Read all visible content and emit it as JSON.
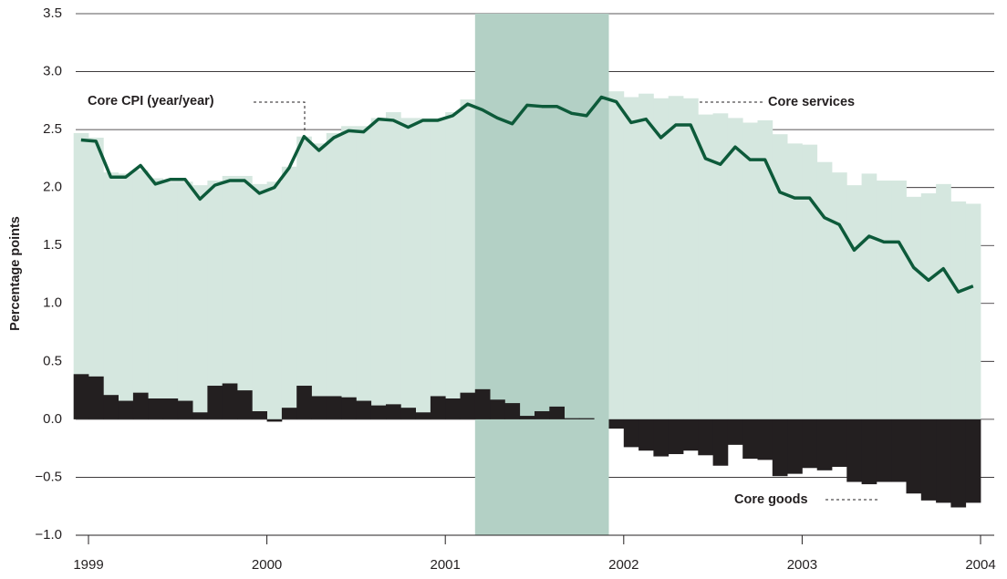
{
  "chart_data": {
    "type": "bar",
    "y_label": "Percentage points",
    "annotations": [
      "Core CPI (year/year)",
      "Core services",
      "Core goods"
    ],
    "categories": [
      "1999",
      null,
      null,
      null,
      null,
      null,
      null,
      null,
      null,
      null,
      null,
      null,
      "2000",
      null,
      null,
      null,
      null,
      null,
      null,
      null,
      null,
      null,
      null,
      null,
      "2001",
      null,
      null,
      null,
      null,
      null,
      null,
      null,
      null,
      null,
      null,
      null,
      "2002",
      null,
      null,
      null,
      null,
      null,
      null,
      null,
      null,
      null,
      null,
      null,
      "2003",
      null,
      null,
      null,
      null,
      null,
      null,
      null,
      null,
      null,
      null,
      null,
      "2004"
    ],
    "shaded_range": [
      27,
      35
    ],
    "shade_color": "#b3d0c5",
    "series": [
      {
        "name": "Core services",
        "type": "bar",
        "color": "#d5e7df",
        "values": [
          2.47,
          2.43,
          2.13,
          2.12,
          2.15,
          2.08,
          2.05,
          2.05,
          2.02,
          2.06,
          2.1,
          2.1,
          2.03,
          2.05,
          2.18,
          2.44,
          2.38,
          2.47,
          2.53,
          2.53,
          2.6,
          2.65,
          2.6,
          2.6,
          2.6,
          2.65,
          2.76,
          2.7,
          2.65,
          2.62,
          2.7,
          2.7,
          2.72,
          2.68,
          2.66,
          2.8,
          2.83,
          2.78,
          2.81,
          2.77,
          2.79,
          2.77,
          2.63,
          2.64,
          2.6,
          2.56,
          2.58,
          2.46,
          2.38,
          2.37,
          2.22,
          2.13,
          2.02,
          2.12,
          2.06,
          2.06,
          1.92,
          1.95,
          2.03,
          1.88,
          1.86
        ]
      },
      {
        "name": "Core goods",
        "type": "bar",
        "color": "#231f20",
        "values": [
          0.39,
          0.37,
          0.21,
          0.16,
          0.23,
          0.18,
          0.18,
          0.16,
          0.06,
          0.29,
          0.31,
          0.25,
          0.07,
          -0.02,
          0.1,
          0.29,
          0.2,
          0.2,
          0.19,
          0.16,
          0.12,
          0.13,
          0.1,
          0.06,
          0.2,
          0.18,
          0.23,
          0.26,
          0.17,
          0.14,
          0.03,
          0.07,
          0.11,
          0.01,
          0.01,
          0.0,
          -0.08,
          -0.24,
          -0.27,
          -0.32,
          -0.3,
          -0.27,
          -0.31,
          -0.4,
          -0.22,
          -0.34,
          -0.35,
          -0.49,
          -0.47,
          -0.42,
          -0.44,
          -0.41,
          -0.54,
          -0.56,
          -0.54,
          -0.54,
          -0.64,
          -0.7,
          -0.72,
          -0.76,
          -0.72
        ]
      },
      {
        "name": "Core CPI (year/year)",
        "type": "line",
        "color": "#0d5a3a",
        "values": [
          2.41,
          2.4,
          2.09,
          2.09,
          2.19,
          2.03,
          2.07,
          2.07,
          1.9,
          2.02,
          2.06,
          2.06,
          1.95,
          2.0,
          2.17,
          2.44,
          2.32,
          2.43,
          2.49,
          2.48,
          2.59,
          2.58,
          2.52,
          2.58,
          2.58,
          2.62,
          2.72,
          2.67,
          2.6,
          2.55,
          2.71,
          2.7,
          2.7,
          2.64,
          2.62,
          2.78,
          2.74,
          2.56,
          2.59,
          2.43,
          2.54,
          2.54,
          2.25,
          2.2,
          2.35,
          2.24,
          2.24,
          1.96,
          1.91,
          1.91,
          1.74,
          1.68,
          1.46,
          1.58,
          1.53,
          1.53,
          1.31,
          1.2,
          1.3,
          1.1,
          1.15
        ]
      }
    ],
    "ylim": [
      -1.0,
      3.5
    ],
    "yticks": [
      {
        "value": -1,
        "label": "−1.0"
      },
      {
        "value": -0.5,
        "label": "−0.5"
      },
      {
        "value": 0,
        "label": "0.0"
      },
      0.5,
      {
        "value": 1,
        "label": "1.0"
      },
      1.5,
      {
        "value": 2,
        "label": "2.0"
      },
      2.5,
      {
        "value": 3,
        "label": "3.0"
      },
      3.5
    ],
    "grid": true
  }
}
